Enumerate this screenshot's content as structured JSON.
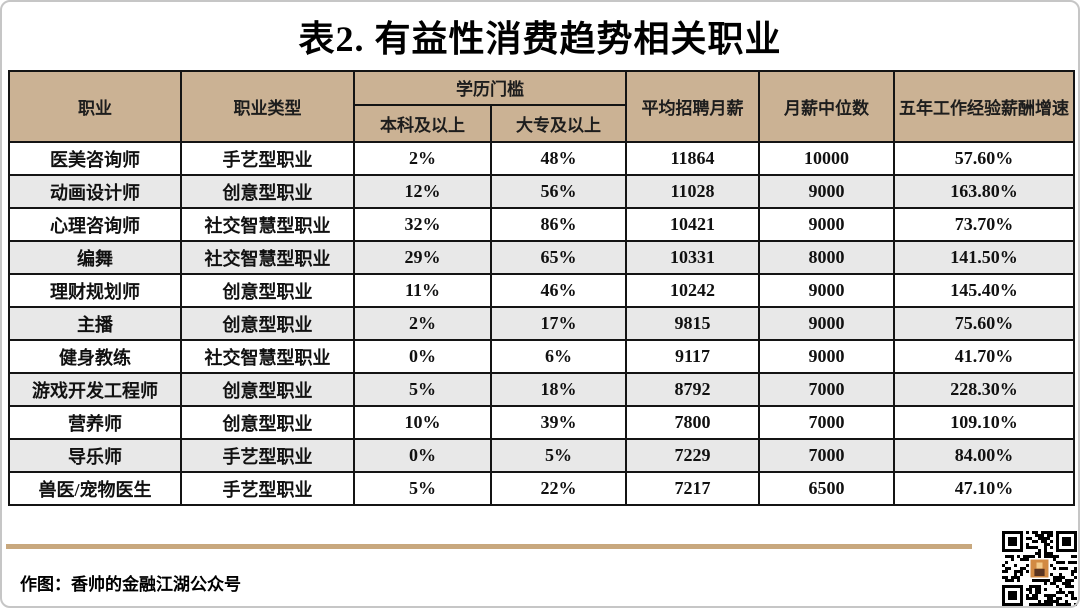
{
  "title": "表2. 有益性消费趋势相关职业",
  "chart_data": {
    "type": "table",
    "title": "表2. 有益性消费趋势相关职业",
    "header": {
      "occupation": "职业",
      "occupation_type": "职业类型",
      "education_threshold": "学历门槛",
      "bachelor_plus": "本科及以上",
      "college_plus": "大专及以上",
      "avg_monthly_salary": "平均招聘月薪",
      "median_monthly_salary": "月薪中位数",
      "five_year_growth": "五年工作经验薪酬增速"
    },
    "rows": [
      [
        "医美咨询师",
        "手艺型职业",
        "2%",
        "48%",
        "11864",
        "10000",
        "57.60%"
      ],
      [
        "动画设计师",
        "创意型职业",
        "12%",
        "56%",
        "11028",
        "9000",
        "163.80%"
      ],
      [
        "心理咨询师",
        "社交智慧型职业",
        "32%",
        "86%",
        "10421",
        "9000",
        "73.70%"
      ],
      [
        "编舞",
        "社交智慧型职业",
        "29%",
        "65%",
        "10331",
        "8000",
        "141.50%"
      ],
      [
        "理财规划师",
        "创意型职业",
        "11%",
        "46%",
        "10242",
        "9000",
        "145.40%"
      ],
      [
        "主播",
        "创意型职业",
        "2%",
        "17%",
        "9815",
        "9000",
        "75.60%"
      ],
      [
        "健身教练",
        "社交智慧型职业",
        "0%",
        "6%",
        "9117",
        "9000",
        "41.70%"
      ],
      [
        "游戏开发工程师",
        "创意型职业",
        "5%",
        "18%",
        "8792",
        "7000",
        "228.30%"
      ],
      [
        "营养师",
        "创意型职业",
        "10%",
        "39%",
        "7800",
        "7000",
        "109.10%"
      ],
      [
        "导乐师",
        "手艺型职业",
        "0%",
        "5%",
        "7229",
        "7000",
        "84.00%"
      ],
      [
        "兽医/宠物医生",
        "手艺型职业",
        "5%",
        "22%",
        "7217",
        "6500",
        "47.10%"
      ]
    ]
  },
  "footer": {
    "credit": "作图：香帅的金融江湖公众号"
  },
  "colors": {
    "header_bg": "#CBB294",
    "row_alt_bg": "#E8E8E8",
    "divider": "#C8A87E",
    "grid": "#141414",
    "qr_photo": "#D28A43"
  }
}
